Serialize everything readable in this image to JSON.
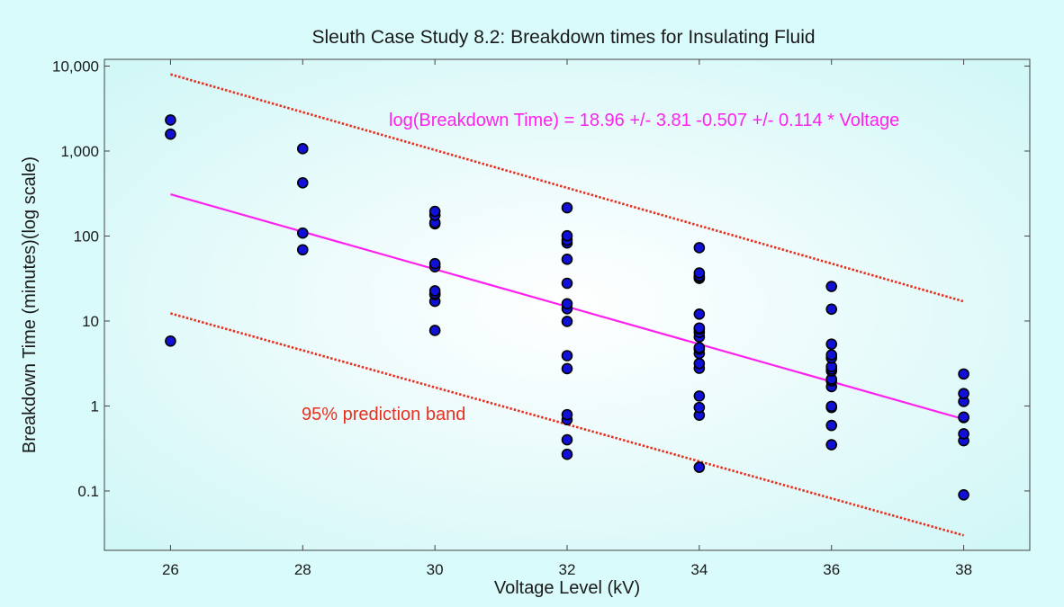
{
  "chart_data": {
    "type": "scatter",
    "title": "Sleuth Case Study 8.2: Breakdown times for Insulating Fluid",
    "xlabel": "Voltage Level (kV)",
    "ylabel": "Breakdown Time (minutes)(log scale)",
    "xlim": [
      25,
      39
    ],
    "ylim": [
      0.02,
      12000
    ],
    "y_scale": "log",
    "x_ticks": [
      26,
      28,
      30,
      32,
      34,
      36,
      38
    ],
    "y_ticks": [
      0.1,
      1,
      10,
      100,
      1000,
      10000
    ],
    "y_tick_labels": [
      "0.1",
      "1",
      "10",
      "100",
      "1,000",
      "10,000"
    ],
    "grid": false,
    "colors": {
      "points_fill": "#1010d8",
      "points_edge": "#000000",
      "fit_line": "#ff22ee",
      "band": "#e83020",
      "equation_text": "#ff22ee",
      "band_label_text": "#e83020"
    },
    "series": [
      {
        "kind": "points",
        "points": [
          [
            26,
            5.8
          ],
          [
            26,
            1580
          ],
          [
            26,
            2320
          ],
          [
            28,
            68.9
          ],
          [
            28,
            108.3
          ],
          [
            28,
            423
          ],
          [
            28,
            1067
          ],
          [
            30,
            7.74
          ],
          [
            30,
            17.05
          ],
          [
            30,
            20.46
          ],
          [
            30,
            21.02
          ],
          [
            30,
            22.66
          ],
          [
            30,
            43.4
          ],
          [
            30,
            47.3
          ],
          [
            30,
            139.07
          ],
          [
            30,
            144.12
          ],
          [
            30,
            175.88
          ],
          [
            30,
            194.9
          ],
          [
            32,
            0.27
          ],
          [
            32,
            0.4
          ],
          [
            32,
            0.69
          ],
          [
            32,
            0.79
          ],
          [
            32,
            2.75
          ],
          [
            32,
            3.91
          ],
          [
            32,
            9.88
          ],
          [
            32,
            13.95
          ],
          [
            32,
            15.93
          ],
          [
            32,
            27.8
          ],
          [
            32,
            53.24
          ],
          [
            32,
            82.85
          ],
          [
            32,
            89.29
          ],
          [
            32,
            100.58
          ],
          [
            32,
            215.1
          ],
          [
            34,
            0.19
          ],
          [
            34,
            0.78
          ],
          [
            34,
            0.96
          ],
          [
            34,
            1.31
          ],
          [
            34,
            2.78
          ],
          [
            34,
            3.16
          ],
          [
            34,
            4.15
          ],
          [
            34,
            4.67
          ],
          [
            34,
            4.85
          ],
          [
            34,
            6.5
          ],
          [
            34,
            7.35
          ],
          [
            34,
            8.01
          ],
          [
            34,
            8.27
          ],
          [
            34,
            12.06
          ],
          [
            34,
            31.75
          ],
          [
            34,
            32.52
          ],
          [
            34,
            33.91
          ],
          [
            34,
            36.71
          ],
          [
            34,
            72.89
          ],
          [
            36,
            0.35
          ],
          [
            36,
            0.59
          ],
          [
            36,
            0.96
          ],
          [
            36,
            0.99
          ],
          [
            36,
            1.69
          ],
          [
            36,
            1.97
          ],
          [
            36,
            2.07
          ],
          [
            36,
            2.58
          ],
          [
            36,
            2.71
          ],
          [
            36,
            2.9
          ],
          [
            36,
            3.67
          ],
          [
            36,
            3.99
          ],
          [
            36,
            5.35
          ],
          [
            36,
            13.77
          ],
          [
            36,
            25.5
          ],
          [
            38,
            0.09
          ],
          [
            38,
            0.39
          ],
          [
            38,
            0.47
          ],
          [
            38,
            0.73
          ],
          [
            38,
            0.74
          ],
          [
            38,
            1.13
          ],
          [
            38,
            1.4
          ],
          [
            38,
            2.38
          ]
        ]
      },
      {
        "kind": "fit_line",
        "points": [
          [
            26,
            310
          ],
          [
            38,
            0.7
          ]
        ]
      },
      {
        "kind": "upper_band",
        "points": [
          [
            26,
            8000
          ],
          [
            38,
            17
          ]
        ]
      },
      {
        "kind": "lower_band",
        "points": [
          [
            26,
            12.3
          ],
          [
            38,
            0.03
          ]
        ]
      }
    ],
    "annotations": {
      "equation": "log(Breakdown Time) = 18.96 +/-  3.81 -0.507 +/- 0.114 * Voltage",
      "band_label": "95% prediction band"
    }
  }
}
